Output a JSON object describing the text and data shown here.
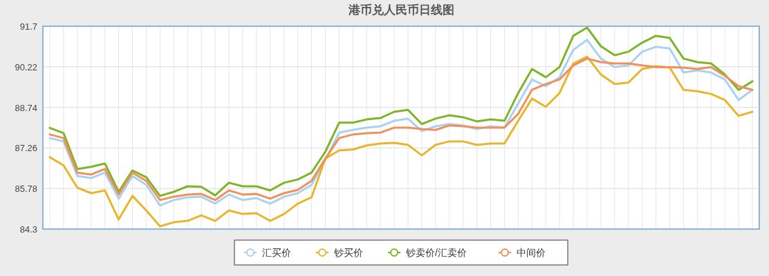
{
  "chart_data": {
    "type": "line",
    "title": "港币兑人民币日线图",
    "categories": [
      null,
      null,
      null,
      null,
      null,
      null,
      null,
      null,
      null,
      null,
      null,
      null,
      null,
      null,
      null,
      null,
      null,
      null,
      null,
      null,
      null,
      null,
      null,
      null,
      null,
      null,
      null,
      null,
      null,
      null,
      null,
      null,
      null,
      null,
      null,
      null,
      null,
      null,
      null,
      null,
      null,
      null,
      null,
      null,
      null,
      null,
      null,
      null,
      null,
      null,
      null,
      null
    ],
    "series": [
      {
        "name": "汇买价",
        "color": "#a9d1f0",
        "values": [
          87.62,
          87.5,
          86.24,
          86.16,
          86.36,
          85.41,
          86.24,
          85.91,
          85.16,
          85.36,
          85.46,
          85.48,
          85.23,
          85.56,
          85.36,
          85.43,
          85.23,
          85.48,
          85.61,
          85.91,
          86.82,
          87.82,
          87.92,
          88.0,
          88.05,
          88.25,
          88.33,
          87.87,
          88.05,
          88.13,
          88.08,
          87.95,
          88.05,
          88.0,
          88.88,
          89.76,
          89.51,
          89.84,
          90.84,
          91.2,
          90.52,
          90.21,
          90.27,
          90.77,
          90.95,
          90.89,
          90.01,
          90.09,
          90.01,
          89.76,
          89.01,
          89.38
        ]
      },
      {
        "name": "钞买价",
        "color": "#e8b62c",
        "values": [
          86.92,
          86.62,
          85.81,
          85.61,
          85.71,
          84.65,
          85.51,
          84.98,
          84.4,
          84.55,
          84.6,
          84.8,
          84.6,
          84.98,
          84.85,
          84.88,
          84.6,
          84.85,
          85.23,
          85.46,
          86.87,
          87.17,
          87.2,
          87.35,
          87.42,
          87.45,
          87.37,
          86.99,
          87.37,
          87.5,
          87.5,
          87.37,
          87.42,
          87.42,
          88.25,
          89.06,
          88.76,
          89.26,
          90.34,
          90.59,
          89.94,
          89.59,
          89.64,
          90.14,
          90.24,
          90.19,
          89.38,
          89.33,
          89.23,
          89.01,
          88.43,
          88.58
        ]
      },
      {
        "name": "钞卖价/汇卖价",
        "color": "#7cb526",
        "values": [
          87.99,
          87.8,
          86.49,
          86.57,
          86.69,
          85.66,
          86.44,
          86.19,
          85.51,
          85.66,
          85.86,
          85.84,
          85.53,
          85.99,
          85.86,
          85.86,
          85.71,
          85.99,
          86.11,
          86.36,
          87.12,
          88.18,
          88.18,
          88.3,
          88.35,
          88.58,
          88.65,
          88.13,
          88.33,
          88.45,
          88.38,
          88.23,
          88.3,
          88.25,
          89.26,
          90.14,
          89.84,
          90.21,
          91.35,
          91.65,
          90.97,
          90.64,
          90.77,
          91.1,
          91.35,
          91.27,
          90.52,
          90.39,
          90.34,
          89.94,
          89.38,
          89.69
        ]
      },
      {
        "name": "中间价",
        "color": "#f0915c",
        "values": [
          87.75,
          87.62,
          86.36,
          86.29,
          86.49,
          85.56,
          86.36,
          86.06,
          85.36,
          85.48,
          85.56,
          85.58,
          85.36,
          85.71,
          85.56,
          85.58,
          85.41,
          85.61,
          85.73,
          86.06,
          86.87,
          87.62,
          87.75,
          87.8,
          87.82,
          88.0,
          88.0,
          87.95,
          87.92,
          88.08,
          88.05,
          88.0,
          88.0,
          88.0,
          88.5,
          89.38,
          89.59,
          89.76,
          90.27,
          90.52,
          90.39,
          90.34,
          90.34,
          90.27,
          90.21,
          90.21,
          90.19,
          90.14,
          90.21,
          89.89,
          89.51,
          89.38
        ]
      }
    ],
    "ylim": [
      84.3,
      91.7
    ],
    "yticks": [
      84.3,
      85.78,
      87.26,
      88.74,
      90.22,
      91.7
    ],
    "grid": true,
    "legend": "bottom"
  }
}
